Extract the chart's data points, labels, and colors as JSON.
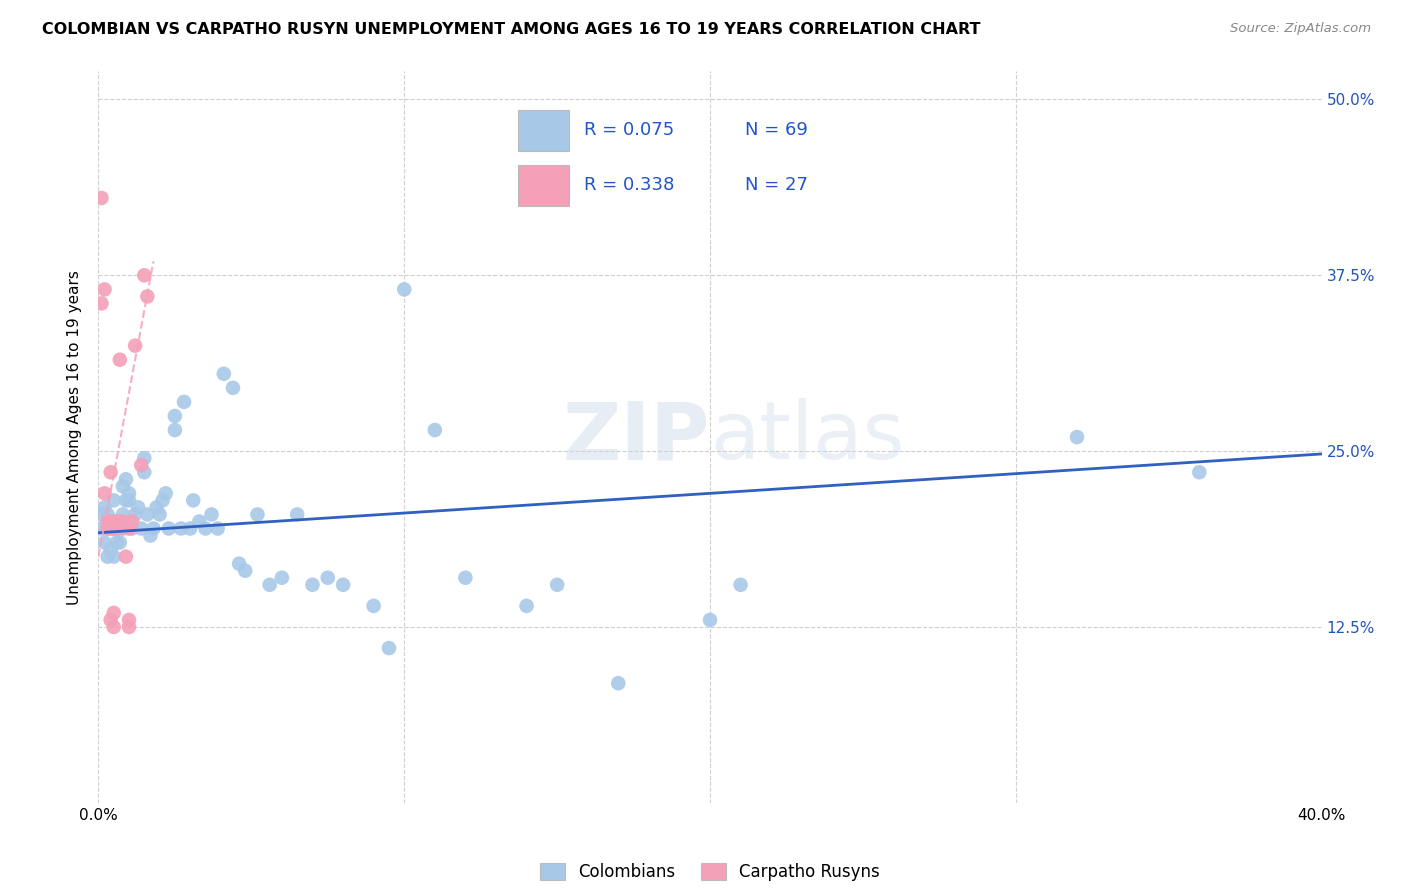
{
  "title": "COLOMBIAN VS CARPATHO RUSYN UNEMPLOYMENT AMONG AGES 16 TO 19 YEARS CORRELATION CHART",
  "source": "Source: ZipAtlas.com",
  "ylabel_label": "Unemployment Among Ages 16 to 19 years",
  "legend_label1": "Colombians",
  "legend_label2": "Carpatho Rusyns",
  "R1": "0.075",
  "N1": "69",
  "R2": "0.338",
  "N2": "27",
  "color_colombian": "#a8c8e8",
  "color_rusyn": "#f4a0b8",
  "color_line1": "#3060c0",
  "color_line2": "#e07090",
  "watermark_zip": "ZIP",
  "watermark_atlas": "atlas",
  "xlim": [
    0.0,
    0.4
  ],
  "ylim": [
    0.0,
    0.52
  ],
  "colombian_x": [
    0.001,
    0.001,
    0.002,
    0.002,
    0.003,
    0.003,
    0.003,
    0.004,
    0.004,
    0.005,
    0.005,
    0.005,
    0.006,
    0.006,
    0.007,
    0.007,
    0.008,
    0.008,
    0.009,
    0.009,
    0.01,
    0.01,
    0.011,
    0.012,
    0.013,
    0.014,
    0.015,
    0.015,
    0.016,
    0.017,
    0.018,
    0.019,
    0.02,
    0.021,
    0.022,
    0.023,
    0.025,
    0.025,
    0.027,
    0.028,
    0.03,
    0.031,
    0.033,
    0.035,
    0.037,
    0.039,
    0.041,
    0.044,
    0.046,
    0.048,
    0.052,
    0.056,
    0.06,
    0.065,
    0.07,
    0.075,
    0.08,
    0.09,
    0.095,
    0.1,
    0.11,
    0.12,
    0.14,
    0.15,
    0.17,
    0.2,
    0.21,
    0.32,
    0.36
  ],
  "colombian_y": [
    0.195,
    0.205,
    0.185,
    0.21,
    0.195,
    0.205,
    0.175,
    0.18,
    0.2,
    0.175,
    0.195,
    0.215,
    0.185,
    0.2,
    0.185,
    0.195,
    0.205,
    0.225,
    0.215,
    0.23,
    0.215,
    0.22,
    0.195,
    0.205,
    0.21,
    0.195,
    0.235,
    0.245,
    0.205,
    0.19,
    0.195,
    0.21,
    0.205,
    0.215,
    0.22,
    0.195,
    0.265,
    0.275,
    0.195,
    0.285,
    0.195,
    0.215,
    0.2,
    0.195,
    0.205,
    0.195,
    0.305,
    0.295,
    0.17,
    0.165,
    0.205,
    0.155,
    0.16,
    0.205,
    0.155,
    0.16,
    0.155,
    0.14,
    0.11,
    0.365,
    0.265,
    0.16,
    0.14,
    0.155,
    0.085,
    0.13,
    0.155,
    0.26,
    0.235
  ],
  "rusyn_x": [
    0.001,
    0.001,
    0.002,
    0.002,
    0.003,
    0.003,
    0.004,
    0.004,
    0.004,
    0.004,
    0.005,
    0.005,
    0.005,
    0.006,
    0.006,
    0.007,
    0.008,
    0.008,
    0.009,
    0.01,
    0.01,
    0.01,
    0.011,
    0.012,
    0.014,
    0.015,
    0.016
  ],
  "rusyn_y": [
    0.43,
    0.355,
    0.365,
    0.22,
    0.195,
    0.2,
    0.195,
    0.235,
    0.13,
    0.2,
    0.195,
    0.135,
    0.125,
    0.2,
    0.195,
    0.315,
    0.2,
    0.195,
    0.175,
    0.195,
    0.125,
    0.13,
    0.2,
    0.325,
    0.24,
    0.375,
    0.36
  ],
  "line1_x": [
    0.0,
    0.4
  ],
  "line1_y": [
    0.192,
    0.248
  ],
  "line2_x": [
    0.0,
    0.018
  ],
  "line2_y": [
    0.175,
    0.385
  ]
}
